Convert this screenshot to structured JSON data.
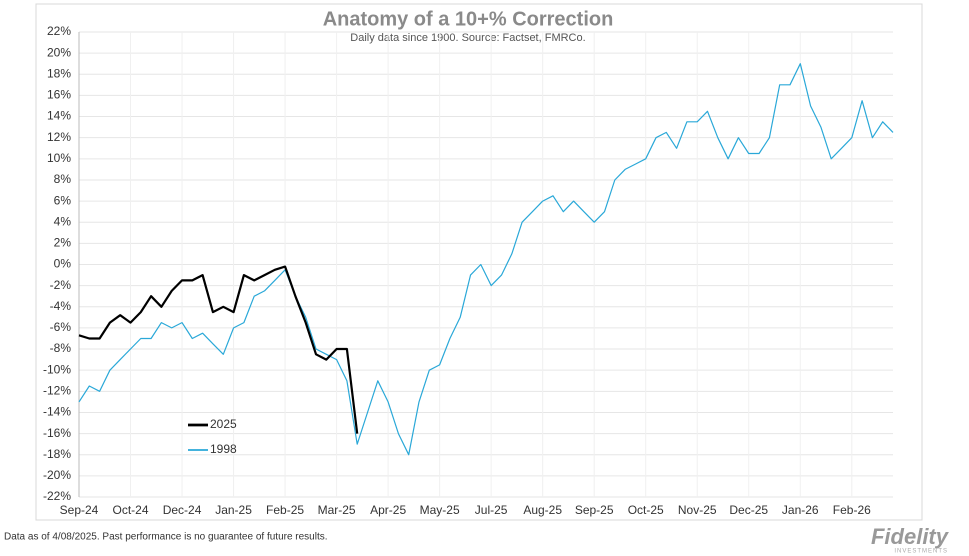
{
  "chart_data": {
    "type": "line",
    "title": "Anatomy of a 10+% Correction",
    "subtitle": "Daily data since 1900.  Source: Factset, FMRCo.",
    "categories": [
      "Sep-24",
      null,
      null,
      null,
      null,
      "Oct-24",
      null,
      null,
      null,
      null,
      "Dec-24",
      null,
      null,
      null,
      null,
      "Jan-25",
      null,
      null,
      null,
      null,
      "Feb-25",
      null,
      null,
      null,
      null,
      "Mar-25",
      null,
      null,
      null,
      null,
      "Apr-25",
      null,
      null,
      null,
      null,
      "May-25",
      null,
      null,
      null,
      null,
      "Jul-25",
      null,
      null,
      null,
      null,
      "Aug-25",
      null,
      null,
      null,
      null,
      "Sep-25",
      null,
      null,
      null,
      null,
      "Oct-25",
      null,
      null,
      null,
      null,
      "Nov-25",
      null,
      null,
      null,
      null,
      "Dec-25",
      null,
      null,
      null,
      null,
      "Jan-26",
      null,
      null,
      null,
      null,
      "Feb-26",
      null,
      null,
      null,
      null
    ],
    "series": [
      {
        "name": "2025",
        "color": "#000000",
        "width": 2.2,
        "values": [
          -6.7,
          -7,
          -7,
          -5.5,
          -4.8,
          -5.5,
          -4.5,
          -3,
          -4,
          -2.5,
          -1.5,
          -1.5,
          -1,
          -4.5,
          -4,
          -4.5,
          -1,
          -1.5,
          -1,
          -0.5,
          -0.2,
          -3,
          -5.5,
          -8.5,
          -9,
          -8,
          -8,
          -16,
          null,
          null,
          null,
          null,
          null,
          null,
          null,
          null,
          null,
          null,
          null,
          null,
          null,
          null,
          null,
          null,
          null,
          null,
          null,
          null,
          null,
          null,
          null,
          null,
          null,
          null,
          null,
          null,
          null,
          null,
          null,
          null,
          null,
          null,
          null,
          null,
          null,
          null,
          null,
          null,
          null,
          null,
          null,
          null,
          null,
          null,
          null,
          null,
          null,
          null,
          null,
          null
        ]
      },
      {
        "name": "1998",
        "color": "#2aa8d8",
        "width": 1.2,
        "values": [
          -13,
          -11.5,
          -12,
          -10,
          -9,
          -8,
          -7,
          -7,
          -5.5,
          -6,
          -5.5,
          -7,
          -6.5,
          -7.5,
          -8.5,
          -6,
          -5.5,
          -3,
          -2.5,
          -1.5,
          -0.5,
          -3,
          -5,
          -8,
          -8.5,
          -9,
          -11,
          -17,
          -14,
          -11,
          -13,
          -16,
          -18,
          -13,
          -10,
          -9.5,
          -7,
          -5,
          -1,
          0,
          -2,
          -1,
          1,
          4,
          5,
          6,
          6.5,
          5,
          6,
          5,
          4,
          5,
          8,
          9,
          9.5,
          10,
          12,
          12.5,
          11,
          13.5,
          13.5,
          14.5,
          12,
          10,
          12,
          10.5,
          10.5,
          12,
          17,
          17,
          19,
          15,
          13,
          10,
          11,
          12,
          15.5,
          12,
          13.5,
          12.5
        ]
      }
    ],
    "ylim": [
      -22,
      22
    ],
    "yticks": [
      {
        "value": -22,
        "label": "-22%"
      },
      {
        "value": -20,
        "label": "-20%"
      },
      {
        "value": -18,
        "label": "-18%"
      },
      {
        "value": -16,
        "label": "-16%"
      },
      {
        "value": -14,
        "label": "-14%"
      },
      {
        "value": -12,
        "label": "-12%"
      },
      {
        "value": -10,
        "label": "-10%"
      },
      {
        "value": -8,
        "label": "-8%"
      },
      {
        "value": -6,
        "label": "-6%"
      },
      {
        "value": -4,
        "label": "-4%"
      },
      {
        "value": -2,
        "label": "-2%"
      },
      {
        "value": 0,
        "label": "0%"
      },
      {
        "value": 2,
        "label": "2%"
      },
      {
        "value": 4,
        "label": "4%"
      },
      {
        "value": 6,
        "label": "6%"
      },
      {
        "value": 8,
        "label": "8%"
      },
      {
        "value": 10,
        "label": "10%"
      },
      {
        "value": 12,
        "label": "12%"
      },
      {
        "value": 14,
        "label": "14%"
      },
      {
        "value": 16,
        "label": "16%"
      },
      {
        "value": 18,
        "label": "18%"
      },
      {
        "value": 20,
        "label": "20%"
      },
      {
        "value": 22,
        "label": "22%"
      }
    ],
    "grid": true,
    "legend": "lower-left"
  },
  "footer": "Data as of 4/08/2025. Past performance is no guarantee of future results.",
  "logo": {
    "name": "Fidelity",
    "tagline": "INVESTMENTS"
  }
}
